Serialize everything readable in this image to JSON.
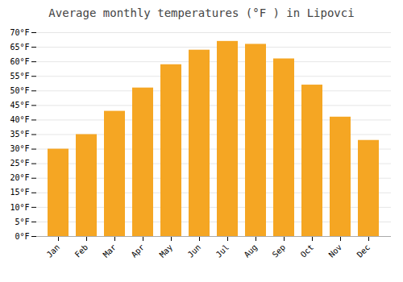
{
  "chart_data": {
    "type": "bar",
    "title": "Average monthly temperatures (°F ) in Lipovci",
    "categories": [
      "Jan",
      "Feb",
      "Mar",
      "Apr",
      "May",
      "Jun",
      "Jul",
      "Aug",
      "Sep",
      "Oct",
      "Nov",
      "Dec"
    ],
    "values": [
      30,
      35,
      43,
      51,
      59,
      64,
      67,
      66,
      61,
      52,
      41,
      33
    ],
    "color": "#F5A623",
    "ylim": [
      0,
      70
    ],
    "yticks": [
      {
        "value": 0,
        "label": "0°F"
      },
      {
        "value": 5,
        "label": "5°F"
      },
      {
        "value": 10,
        "label": "10°F"
      },
      {
        "value": 15,
        "label": "15°F"
      },
      {
        "value": 20,
        "label": "20°F"
      },
      {
        "value": 25,
        "label": "25°F"
      },
      {
        "value": 30,
        "label": "30°F"
      },
      {
        "value": 35,
        "label": "35°F"
      },
      {
        "value": 40,
        "label": "40°F"
      },
      {
        "value": 45,
        "label": "45°F"
      },
      {
        "value": 50,
        "label": "50°F"
      },
      {
        "value": 55,
        "label": "55°F"
      },
      {
        "value": 60,
        "label": "60°F"
      },
      {
        "value": 65,
        "label": "65°F"
      },
      {
        "value": 70,
        "label": "70°F"
      }
    ],
    "grid": true
  }
}
